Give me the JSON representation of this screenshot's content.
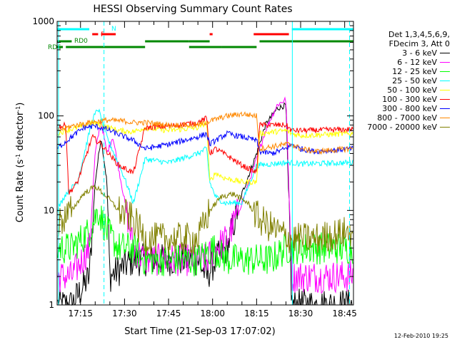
{
  "chart_data": {
    "type": "line",
    "title": "HESSI Observing Summary Count Rates",
    "xlabel": "Start Time (21-Sep-03 17:07:02)",
    "ylabel": "Count Rate (s⁻¹ detector⁻¹)",
    "yscale": "log",
    "ylim": [
      1,
      1000
    ],
    "xlim": [
      "17:07:02",
      "18:48:00"
    ],
    "x_ticks": [
      "17:15",
      "17:30",
      "17:45",
      "18:00",
      "18:15",
      "18:30",
      "18:45"
    ],
    "y_ticks": [
      "1",
      "10",
      "100",
      "1000"
    ],
    "grid": false,
    "legend_placement": "outside-right",
    "legend_header": [
      "Det 1,3,4,5,6,9,",
      "FDecim 3, Att 0"
    ],
    "series": [
      {
        "name": "3 - 6 keV",
        "color": "#000000",
        "x": [
          "17:07",
          "17:12",
          "17:18",
          "17:20",
          "17:22",
          "17:24",
          "17:25",
          "17:33",
          "17:37",
          "17:45",
          "17:55",
          "17:58",
          "18:01",
          "18:05",
          "18:10",
          "18:15",
          "18:18",
          "18:22",
          "18:25",
          "18:27"
        ],
        "y": [
          1,
          1,
          2,
          20,
          60,
          20,
          2,
          3,
          3,
          3,
          3,
          2,
          3,
          4,
          15,
          40,
          80,
          120,
          130,
          1
        ]
      },
      {
        "name": "6 - 12 keV",
        "color": "#ff00ff",
        "x": [
          "17:07",
          "17:12",
          "17:18",
          "17:20",
          "17:22",
          "17:24",
          "17:26",
          "17:33",
          "17:37",
          "17:45",
          "17:55",
          "17:58",
          "18:01",
          "18:05",
          "18:10",
          "18:15",
          "18:18",
          "18:22",
          "18:25",
          "18:27",
          "18:30",
          "18:47"
        ],
        "y": [
          2,
          2,
          4,
          40,
          90,
          40,
          60,
          4,
          3,
          3,
          3,
          3,
          4,
          5,
          12,
          35,
          70,
          130,
          150,
          2,
          2,
          2
        ]
      },
      {
        "name": "12 - 25 keV",
        "color": "#00ff00",
        "x": [
          "17:07",
          "17:12",
          "17:18",
          "17:21",
          "17:24",
          "17:28",
          "17:33",
          "17:37",
          "17:45",
          "17:55",
          "18:00",
          "18:05",
          "18:10",
          "18:15",
          "18:20",
          "18:25",
          "18:30",
          "18:47"
        ],
        "y": [
          4,
          4,
          6,
          10,
          6,
          4,
          4,
          3,
          3,
          3,
          4,
          3,
          3,
          3,
          3,
          4,
          4,
          4
        ]
      },
      {
        "name": "25 - 50 keV",
        "color": "#00ffff",
        "x": [
          "17:07",
          "17:10",
          "17:14",
          "17:19",
          "17:21",
          "17:24",
          "17:30",
          "17:33",
          "17:37",
          "17:45",
          "17:55",
          "17:58",
          "17:59",
          "18:01",
          "18:04",
          "18:10",
          "18:15",
          "18:25",
          "18:27",
          "18:30",
          "18:47"
        ],
        "y": [
          10,
          15,
          20,
          90,
          120,
          60,
          22,
          12,
          35,
          32,
          40,
          45,
          20,
          14,
          12,
          12,
          30,
          32,
          32,
          31,
          32
        ]
      },
      {
        "name": "50 - 100 keV",
        "color": "#ffff00",
        "x": [
          "17:07",
          "17:10",
          "17:14",
          "17:19",
          "17:22",
          "17:28",
          "17:33",
          "17:37",
          "17:45",
          "17:55",
          "17:58",
          "17:59",
          "18:01",
          "18:04",
          "18:10",
          "18:15",
          "18:16",
          "18:25",
          "18:27",
          "18:30",
          "18:47"
        ],
        "y": [
          65,
          70,
          75,
          85,
          80,
          70,
          68,
          75,
          70,
          75,
          85,
          20,
          25,
          22,
          20,
          20,
          65,
          70,
          65,
          62,
          65
        ]
      },
      {
        "name": "100 - 300 keV",
        "color": "#ff0000",
        "x": [
          "17:07",
          "17:10",
          "17:11",
          "17:14",
          "17:19",
          "17:22",
          "17:28",
          "17:33",
          "17:37",
          "17:45",
          "17:55",
          "17:58",
          "17:59",
          "18:01",
          "18:05",
          "18:10",
          "18:15",
          "18:16",
          "18:25",
          "18:27",
          "18:30",
          "18:47"
        ],
        "y": [
          75,
          80,
          15,
          20,
          60,
          50,
          30,
          25,
          75,
          78,
          85,
          95,
          40,
          45,
          38,
          30,
          25,
          80,
          80,
          70,
          70,
          72
        ]
      },
      {
        "name": "300 - 800 keV",
        "color": "#0000ff",
        "x": [
          "17:07",
          "17:12",
          "17:16",
          "17:20",
          "17:24",
          "17:30",
          "17:33",
          "17:37",
          "17:45",
          "17:55",
          "17:58",
          "17:59",
          "18:01",
          "18:05",
          "18:10",
          "18:15",
          "18:16",
          "18:20",
          "18:25",
          "18:27",
          "18:30",
          "18:35",
          "18:47"
        ],
        "y": [
          45,
          60,
          75,
          78,
          72,
          60,
          55,
          45,
          50,
          60,
          65,
          50,
          55,
          65,
          60,
          55,
          42,
          40,
          45,
          50,
          45,
          42,
          45
        ]
      },
      {
        "name": "800 - 7000 keV",
        "color": "#ff8800",
        "x": [
          "17:07",
          "17:12",
          "17:18",
          "17:24",
          "17:30",
          "17:33",
          "17:37",
          "17:45",
          "17:55",
          "18:00",
          "18:05",
          "18:10",
          "18:15",
          "18:16",
          "18:25",
          "18:27",
          "18:30",
          "18:35",
          "18:47"
        ],
        "y": [
          70,
          78,
          85,
          90,
          88,
          85,
          85,
          80,
          80,
          90,
          100,
          105,
          100,
          45,
          50,
          50,
          45,
          42,
          45
        ]
      },
      {
        "name": "7000 - 20000 keV",
        "color": "#808000",
        "x": [
          "17:07",
          "17:12",
          "17:16",
          "17:20",
          "17:24",
          "17:28",
          "17:33",
          "17:37",
          "17:45",
          "17:55",
          "17:59",
          "18:03",
          "18:07",
          "18:12",
          "18:16",
          "18:22",
          "18:27",
          "18:35",
          "18:47"
        ],
        "y": [
          7,
          10,
          15,
          18,
          14,
          10,
          8,
          5,
          5,
          5,
          10,
          14,
          15,
          12,
          8,
          6,
          5,
          5,
          6
        ]
      }
    ]
  },
  "flags": [
    {
      "label": "N",
      "color": "#00ffff",
      "segments": [
        [
          "17:07",
          "17:18"
        ],
        [
          "18:27",
          "18:48"
        ]
      ]
    },
    {
      "label": "F",
      "color": "#ff0000",
      "segments": [
        [
          "17:19",
          "17:21"
        ],
        [
          "17:22",
          "17:27"
        ],
        [
          "17:59",
          "18:00"
        ],
        [
          "18:14",
          "18:26"
        ]
      ]
    },
    {
      "label": "RD0",
      "color": "#008800",
      "segments": [
        [
          "17:07",
          "17:12"
        ],
        [
          "17:37",
          "17:52"
        ],
        [
          "17:52",
          "17:59"
        ],
        [
          "18:16",
          "18:48"
        ]
      ]
    },
    {
      "label": "RD6",
      "color": "#008800",
      "segments": [
        [
          "17:07",
          "17:09"
        ],
        [
          "17:10",
          "17:37"
        ],
        [
          "17:52",
          "18:03"
        ],
        [
          "18:03",
          "18:15"
        ]
      ]
    }
  ],
  "vertical_lines": {
    "solid_cyan": [
      "17:07:30",
      "18:27:10"
    ],
    "dashed_cyan": [
      "17:23:00",
      "18:46:40"
    ]
  },
  "timestamp": "12-Feb-2010 19:25"
}
